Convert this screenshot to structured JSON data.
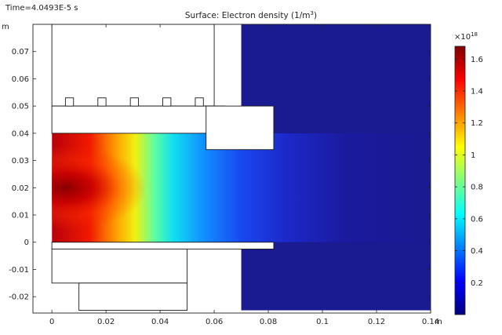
{
  "header": {
    "time_label": "Time=4.0493E-5 s"
  },
  "chart_data": {
    "type": "heatmap",
    "title": "Surface: Electron density (1/m",
    "title_superscript": "3",
    "title_suffix": ")",
    "x_unit": "m",
    "y_unit": "m",
    "xlim": [
      -0.007,
      0.14
    ],
    "ylim": [
      -0.026,
      0.08
    ],
    "x_ticks": [
      {
        "value": 0,
        "label": "0"
      },
      {
        "value": 0.02,
        "label": "0.02"
      },
      {
        "value": 0.04,
        "label": "0.04"
      },
      {
        "value": 0.06,
        "label": "0.06"
      },
      {
        "value": 0.08,
        "label": "0.08"
      },
      {
        "value": 0.1,
        "label": "0.1"
      },
      {
        "value": 0.12,
        "label": "0.12"
      },
      {
        "value": 0.14,
        "label": "0.14"
      }
    ],
    "y_ticks": [
      {
        "value": -0.02,
        "label": "-0.02"
      },
      {
        "value": -0.01,
        "label": "-0.01"
      },
      {
        "value": 0,
        "label": "0"
      },
      {
        "value": 0.01,
        "label": "0.01"
      },
      {
        "value": 0.02,
        "label": "0.02"
      },
      {
        "value": 0.03,
        "label": "0.03"
      },
      {
        "value": 0.04,
        "label": "0.04"
      },
      {
        "value": 0.05,
        "label": "0.05"
      },
      {
        "value": 0.06,
        "label": "0.06"
      },
      {
        "value": 0.07,
        "label": "0.07"
      }
    ],
    "field": {
      "peak_value": 1.65,
      "peak_location": [
        0.005,
        0.02
      ],
      "min_value": 0.0,
      "plasma_channel_y": [
        0.0,
        0.04
      ],
      "background_region": {
        "x": [
          0.07,
          0.14
        ],
        "y": [
          -0.025,
          0.08
        ]
      }
    },
    "geometry": [
      {
        "name": "upper-block",
        "x": [
          0,
          0.06
        ],
        "y": [
          0.05,
          0.08
        ]
      },
      {
        "name": "upper-plate",
        "x": [
          0,
          0.064
        ],
        "y": [
          0.04,
          0.05
        ]
      },
      {
        "name": "upper-step",
        "x": [
          0.057,
          0.082
        ],
        "y": [
          0.034,
          0.05
        ]
      },
      {
        "name": "lower-plate",
        "x": [
          0,
          0.082
        ],
        "y": [
          -0.0025,
          0.0
        ]
      },
      {
        "name": "lower-block",
        "x": [
          0,
          0.05
        ],
        "y": [
          -0.015,
          -0.0025
        ]
      },
      {
        "name": "lower-foot",
        "x": [
          0.01,
          0.05
        ],
        "y": [
          -0.025,
          -0.015
        ]
      }
    ],
    "bumps": [
      {
        "x": [
          0.005,
          0.008
        ],
        "y": [
          0.05,
          0.053
        ]
      },
      {
        "x": [
          0.017,
          0.02
        ],
        "y": [
          0.05,
          0.053
        ]
      },
      {
        "x": [
          0.029,
          0.032
        ],
        "y": [
          0.05,
          0.053
        ]
      },
      {
        "x": [
          0.041,
          0.044
        ],
        "y": [
          0.05,
          0.053
        ]
      },
      {
        "x": [
          0.053,
          0.056
        ],
        "y": [
          0.05,
          0.053
        ]
      }
    ],
    "colorbar": {
      "multiplier_base": "×10",
      "multiplier_exp": "18",
      "range": [
        0.0,
        1.68
      ],
      "ticks": [
        {
          "value": 0.2,
          "label": "0.2"
        },
        {
          "value": 0.4,
          "label": "0.4"
        },
        {
          "value": 0.6,
          "label": "0.6"
        },
        {
          "value": 0.8,
          "label": "0.8"
        },
        {
          "value": 1.0,
          "label": "1"
        },
        {
          "value": 1.2,
          "label": "1.2"
        },
        {
          "value": 1.4,
          "label": "1.4"
        },
        {
          "value": 1.6,
          "label": "1.6"
        }
      ],
      "colormap": [
        "#00007f",
        "#0000ff",
        "#007fff",
        "#00ffff",
        "#7fff7f",
        "#ffff00",
        "#ff7f00",
        "#ff0000",
        "#7f0000"
      ]
    }
  }
}
